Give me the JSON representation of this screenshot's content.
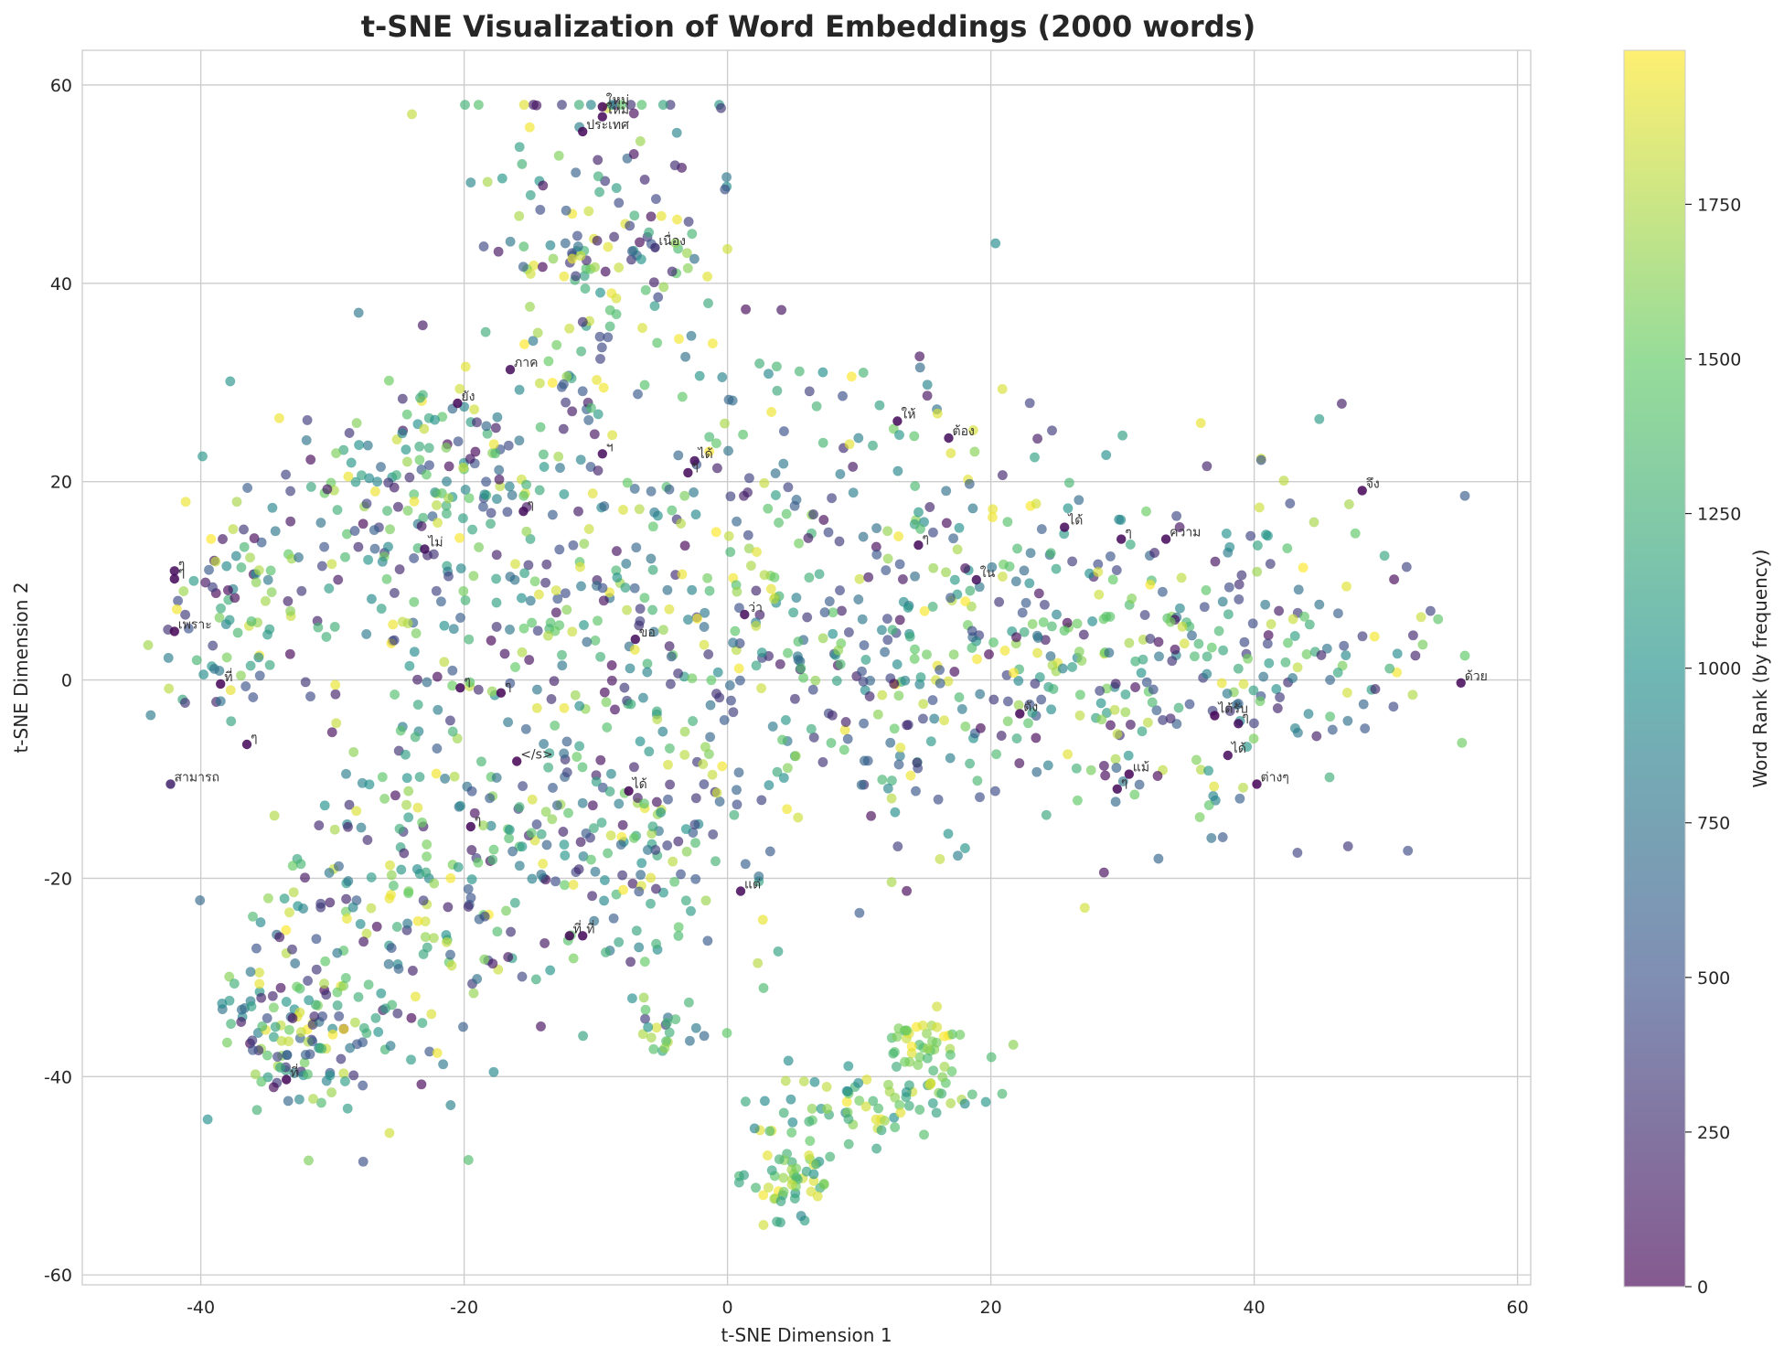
{
  "chart_data": {
    "type": "scatter",
    "title": "t-SNE Visualization of Word Embeddings (2000 words)",
    "xlabel": "t-SNE Dimension 1",
    "ylabel": "t-SNE Dimension 2",
    "xlim": [
      -49,
      61
    ],
    "ylim": [
      -61,
      63.5
    ],
    "x_ticks": [
      -40,
      -20,
      0,
      20,
      40,
      60
    ],
    "y_ticks": [
      -60,
      -40,
      -20,
      0,
      20,
      40,
      60
    ],
    "grid": true,
    "n_points": 2000,
    "marker_alpha": 0.65,
    "colormap": "viridis",
    "colormap_stops": [
      "#440154",
      "#3b528b",
      "#21918c",
      "#5ec962",
      "#fde725"
    ],
    "colorbar": {
      "label": "Word Rank (by frequency)",
      "range": [
        0,
        1999
      ],
      "ticks": [
        0,
        250,
        500,
        750,
        1000,
        1250,
        1500,
        1750
      ]
    },
    "clusters": [
      {
        "cx": -10,
        "cy": 42,
        "sx": 5,
        "sy": 10,
        "w": 0.08,
        "rank": [
          0,
          1999
        ]
      },
      {
        "cx": -24,
        "cy": 18,
        "sx": 6,
        "sy": 6,
        "w": 0.08,
        "rank": [
          0,
          1999
        ]
      },
      {
        "cx": -38,
        "cy": 6,
        "sx": 3,
        "sy": 6,
        "w": 0.05,
        "rank": [
          0,
          1999
        ]
      },
      {
        "cx": -12,
        "cy": 5,
        "sx": 9,
        "sy": 12,
        "w": 0.14,
        "rank": [
          0,
          1999
        ]
      },
      {
        "cx": 6,
        "cy": 8,
        "sx": 9,
        "sy": 12,
        "w": 0.14,
        "rank": [
          0,
          1999
        ]
      },
      {
        "cx": 20,
        "cy": 2,
        "sx": 8,
        "sy": 11,
        "w": 0.1,
        "rank": [
          0,
          1999
        ]
      },
      {
        "cx": 38,
        "cy": 3,
        "sx": 8,
        "sy": 9,
        "w": 0.12,
        "rank": [
          0,
          1999
        ]
      },
      {
        "cx": -25,
        "cy": -25,
        "sx": 5,
        "sy": 8,
        "w": 0.08,
        "rank": [
          0,
          1999
        ]
      },
      {
        "cx": -33,
        "cy": -35,
        "sx": 3,
        "sy": 4,
        "w": 0.05,
        "rank": [
          0,
          1999
        ]
      },
      {
        "cx": -10,
        "cy": -18,
        "sx": 6,
        "sy": 6,
        "w": 0.07,
        "rank": [
          0,
          1999
        ]
      },
      {
        "cx": 5,
        "cy": -50,
        "sx": 1.5,
        "sy": 3,
        "w": 0.03,
        "rank": [
          900,
          1999
        ]
      },
      {
        "cx": 11,
        "cy": -42,
        "sx": 4,
        "sy": 2,
        "w": 0.03,
        "rank": [
          900,
          1999
        ]
      },
      {
        "cx": 15,
        "cy": -37,
        "sx": 1.5,
        "sy": 2,
        "w": 0.02,
        "rank": [
          1300,
          1999
        ]
      },
      {
        "cx": -4,
        "cy": -36,
        "sx": 2,
        "sy": 1.5,
        "w": 0.01,
        "rank": [
          300,
          1999
        ]
      }
    ],
    "annotations": [
      {
        "text": "ใหม่",
        "x": -9.5,
        "y": 57.8,
        "rank": 20
      },
      {
        "text": "ใหม่",
        "x": -9.5,
        "y": 56.8,
        "rank": 40
      },
      {
        "text": "ประเทศ",
        "x": -11,
        "y": 55.3,
        "rank": 30
      },
      {
        "text": "เนื่อง",
        "x": -5.5,
        "y": 43.6,
        "rank": 300
      },
      {
        "text": "ภาค",
        "x": -16.5,
        "y": 31.3,
        "rank": 60
      },
      {
        "text": "ยัง",
        "x": -20.5,
        "y": 27.9,
        "rank": 40
      },
      {
        "text": "ฯ",
        "x": -9.5,
        "y": 22.8,
        "rank": 50
      },
      {
        "text": "ได้",
        "x": -2.5,
        "y": 22.1,
        "rank": 70
      },
      {
        "text": "ๆ",
        "x": -3,
        "y": 20.9,
        "rank": 40
      },
      {
        "text": "ๆ",
        "x": -15.5,
        "y": 17.0,
        "rank": 60
      },
      {
        "text": "ไม่",
        "x": -23,
        "y": 13.2,
        "rank": 80
      },
      {
        "text": "ๆ",
        "x": -42,
        "y": 10.2,
        "rank": 30
      },
      {
        "text": "ๆ",
        "x": -42,
        "y": 11.0,
        "rank": 50
      },
      {
        "text": "เพราะ",
        "x": -42,
        "y": 4.9,
        "rank": 10
      },
      {
        "text": "ที่",
        "x": -38.5,
        "y": -0.4,
        "rank": 20
      },
      {
        "text": "ๆ",
        "x": -36.5,
        "y": -6.5,
        "rank": 40
      },
      {
        "text": "สามารถ",
        "x": -42.3,
        "y": -10.5,
        "rank": 200
      },
      {
        "text": "ๆ",
        "x": -20.3,
        "y": -0.8,
        "rank": 30
      },
      {
        "text": "ๆ",
        "x": -17.2,
        "y": -1.3,
        "rank": 10
      },
      {
        "text": "</s>",
        "x": -16,
        "y": -8.2,
        "rank": 0
      },
      {
        "text": "ขอ",
        "x": -7,
        "y": 4.1,
        "rank": 60
      },
      {
        "text": "ว่า",
        "x": 1.3,
        "y": 6.6,
        "rank": 50
      },
      {
        "text": "ได้",
        "x": -7.5,
        "y": -11.2,
        "rank": 20
      },
      {
        "text": "ๆ",
        "x": -19.5,
        "y": -14.8,
        "rank": 30
      },
      {
        "text": "แต่",
        "x": 1,
        "y": -21.3,
        "rank": 40
      },
      {
        "text": "ที่",
        "x": -12,
        "y": -25.8,
        "rank": 20
      },
      {
        "text": "ที่",
        "x": -11,
        "y": -25.8,
        "rank": 40
      },
      {
        "text": "ที่",
        "x": -33.5,
        "y": -40.3,
        "rank": 30
      },
      {
        "text": "ให้",
        "x": 12.9,
        "y": 26.1,
        "rank": 30
      },
      {
        "text": "ต้อง",
        "x": 16.8,
        "y": 24.4,
        "rank": 60
      },
      {
        "text": "ๆ",
        "x": 14.5,
        "y": 13.6,
        "rank": 40
      },
      {
        "text": "ใน",
        "x": 18.9,
        "y": 10.1,
        "rank": 80
      },
      {
        "text": "ได้",
        "x": 25.6,
        "y": 15.4,
        "rank": 50
      },
      {
        "text": "ๆ",
        "x": 29.9,
        "y": 14.2,
        "rank": 30
      },
      {
        "text": "ความ",
        "x": 33.3,
        "y": 14.2,
        "rank": 40
      },
      {
        "text": "จึง",
        "x": 48.2,
        "y": 19.1,
        "rank": 20
      },
      {
        "text": "ดัง",
        "x": 22.2,
        "y": -3.4,
        "rank": 30
      },
      {
        "text": "ได้รับ",
        "x": 37,
        "y": -3.6,
        "rank": 20
      },
      {
        "text": "ๆ",
        "x": 38.8,
        "y": -4.4,
        "rank": 60
      },
      {
        "text": "แม้",
        "x": 30.5,
        "y": -9.5,
        "rank": 20
      },
      {
        "text": "ๆ",
        "x": 29.6,
        "y": -11.0,
        "rank": 40
      },
      {
        "text": "ได้",
        "x": 38,
        "y": -7.6,
        "rank": 50
      },
      {
        "text": "ต่างๆ",
        "x": 40.2,
        "y": -10.5,
        "rank": 20
      },
      {
        "text": "ด้วย",
        "x": 55.7,
        "y": -0.3,
        "rank": 30
      }
    ]
  }
}
